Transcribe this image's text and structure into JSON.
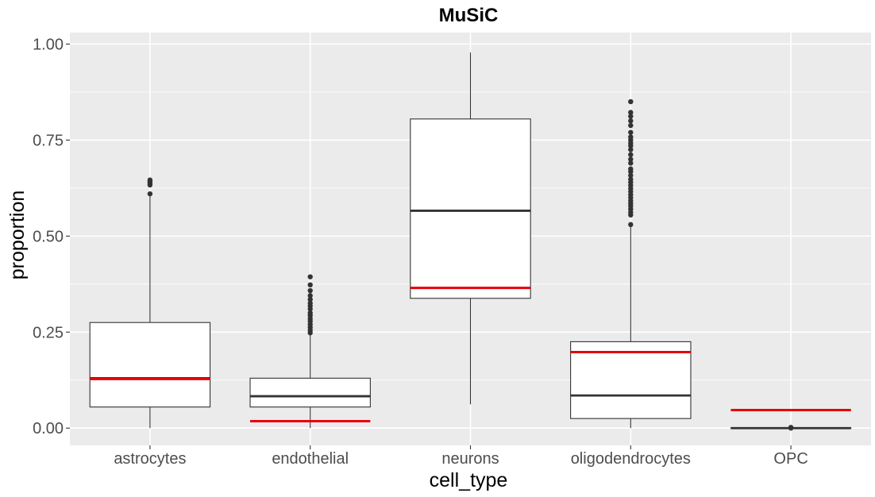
{
  "chart_data": {
    "type": "box",
    "title": "MuSiC",
    "xlabel": "cell_type",
    "ylabel": "proportion",
    "ylim": [
      -0.045,
      1.03
    ],
    "yticks": [
      0.0,
      0.25,
      0.5,
      0.75,
      1.0
    ],
    "ytick_labels": [
      "0.00",
      "0.25",
      "0.50",
      "0.75",
      "1.00"
    ],
    "categories": [
      "astrocytes",
      "endothelial",
      "neurons",
      "oligodendrocytes",
      "OPC"
    ],
    "boxes": [
      {
        "category": "astrocytes",
        "whisker_low": 0.0,
        "q1": 0.055,
        "median": 0.13,
        "q3": 0.275,
        "whisker_high": 0.605,
        "reference": 0.128,
        "outliers": [
          0.61,
          0.633,
          0.638,
          0.642,
          0.646
        ]
      },
      {
        "category": "endothelial",
        "whisker_low": 0.0,
        "q1": 0.055,
        "median": 0.083,
        "q3": 0.13,
        "whisker_high": 0.243,
        "reference": 0.018,
        "outliers": [
          0.248,
          0.255,
          0.262,
          0.27,
          0.278,
          0.285,
          0.293,
          0.3,
          0.31,
          0.318,
          0.325,
          0.335,
          0.345,
          0.358,
          0.373,
          0.394
        ]
      },
      {
        "category": "neurons",
        "whisker_low": 0.062,
        "q1": 0.338,
        "median": 0.566,
        "q3": 0.805,
        "whisker_high": 0.978,
        "reference": 0.365,
        "outliers": []
      },
      {
        "category": "oligodendrocytes",
        "whisker_low": 0.0,
        "q1": 0.025,
        "median": 0.085,
        "q3": 0.225,
        "whisker_high": 0.525,
        "reference": 0.198,
        "outliers": [
          0.53,
          0.555,
          0.562,
          0.57,
          0.578,
          0.585,
          0.592,
          0.6,
          0.608,
          0.616,
          0.624,
          0.632,
          0.64,
          0.648,
          0.658,
          0.668,
          0.675,
          0.69,
          0.7,
          0.712,
          0.725,
          0.735,
          0.742,
          0.75,
          0.758,
          0.77,
          0.788,
          0.8,
          0.812,
          0.822,
          0.85
        ]
      },
      {
        "category": "OPC",
        "whisker_low": 0.0,
        "q1": 0.0,
        "median": 0.0,
        "q3": 0.0,
        "whisker_high": 0.0,
        "reference": 0.047,
        "outliers": [
          0.0,
          0.001,
          0.002
        ]
      }
    ],
    "grid": true,
    "legend": "none",
    "colors": {
      "panel": "#ebebeb",
      "grid_major": "#ffffff",
      "box_fill": "#ffffff",
      "box_line": "#333333",
      "reference_line": "#e8000b",
      "tick_label": "#4d4d4d"
    }
  }
}
